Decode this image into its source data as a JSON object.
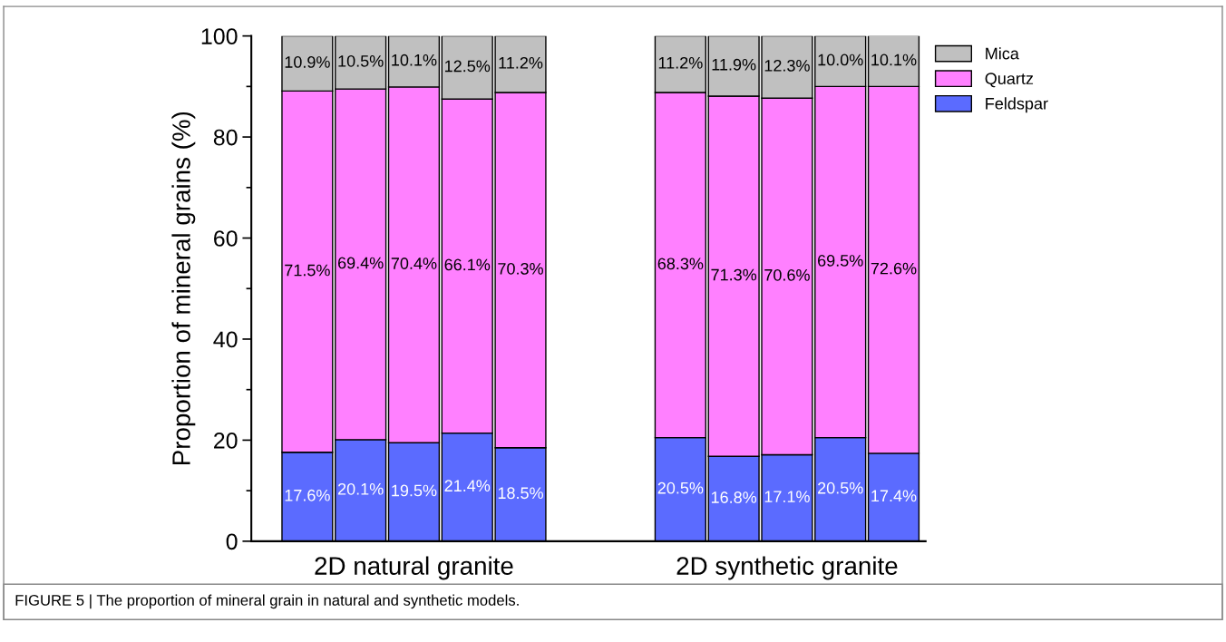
{
  "chart_data": {
    "type": "bar",
    "stacked": true,
    "ylabel": "Proportion of mineral grains (%)",
    "categories": [
      null,
      null,
      "2D natural granite",
      null,
      null,
      null,
      null,
      null,
      null,
      "2D synthetic granite",
      null,
      null
    ],
    "series": [
      {
        "name": "Feldspar",
        "color": "#5b6bff",
        "values": [
          17.6,
          20.1,
          19.5,
          21.4,
          18.5,
          null,
          null,
          20.5,
          16.8,
          17.1,
          20.5,
          17.4
        ],
        "value_labels": [
          "17.6%",
          "20.1%",
          "19.5%",
          "21.4%",
          "18.5%",
          null,
          null,
          "20.5%",
          "16.8%",
          "17.1%",
          "20.5%",
          "17.4%"
        ]
      },
      {
        "name": "Quartz",
        "color": "#ff80ff",
        "values": [
          71.5,
          69.4,
          70.4,
          66.1,
          70.3,
          null,
          null,
          68.3,
          71.3,
          70.6,
          69.5,
          72.6
        ],
        "value_labels": [
          "71.5%",
          "69.4%",
          "70.4%",
          "66.1%",
          "70.3%",
          null,
          null,
          "68.3%",
          "71.3%",
          "70.6%",
          "69.5%",
          "72.6%"
        ]
      },
      {
        "name": "Mica",
        "color": "#c0c0c0",
        "values": [
          10.9,
          10.5,
          10.1,
          12.5,
          11.2,
          null,
          null,
          11.2,
          11.9,
          12.3,
          10.0,
          10.1
        ],
        "value_labels": [
          "10.9%",
          "10.5%",
          "10.1%",
          "12.5%",
          "11.2%",
          null,
          null,
          "11.2%",
          "11.9%",
          "12.3%",
          "10.0%",
          "10.1%"
        ]
      }
    ],
    "ylim": [
      0,
      100
    ],
    "yticks": [
      0,
      20,
      40,
      60,
      80,
      100
    ],
    "legend": "top right",
    "annotations": [
      "FIGURE 5 | The proportion of mineral grain in natural and synthetic models."
    ]
  }
}
